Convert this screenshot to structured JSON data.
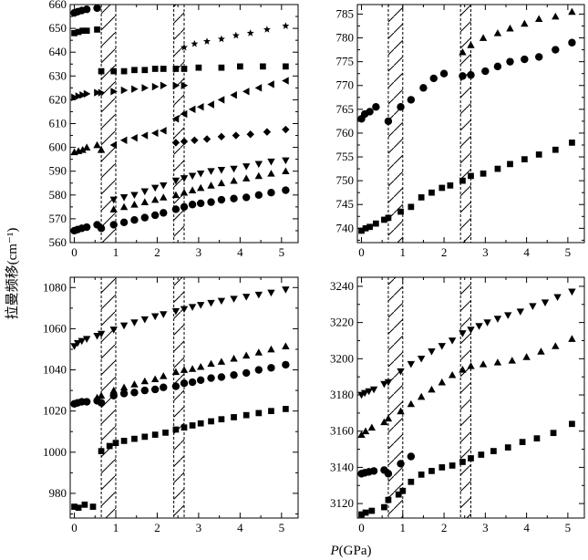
{
  "figure": {
    "ylabel": "拉曼频移(cm⁻¹)",
    "xlabel_italic": "P",
    "xlabel_rest": "(GPa)"
  },
  "chart_data": [
    {
      "type": "scatter",
      "panel": "top-left",
      "xlim": [
        -0.1,
        5.4
      ],
      "ylim": [
        560,
        660
      ],
      "x_ticks": [
        0,
        1,
        2,
        3,
        4,
        5
      ],
      "y_ticks": [
        560,
        570,
        580,
        590,
        600,
        610,
        620,
        630,
        640,
        650,
        660
      ],
      "transition_lines": [
        0.65,
        1.0,
        2.4,
        2.65
      ],
      "hatched_regions": [
        [
          0.65,
          1.0
        ],
        [
          2.4,
          2.65
        ]
      ],
      "series": [
        {
          "marker": "circle",
          "x": [
            0.0,
            0.08,
            0.18,
            0.3,
            0.55,
            0.65,
            0.95,
            1.2,
            1.45,
            1.7,
            1.95,
            2.15,
            2.45,
            2.65,
            2.85,
            3.05,
            3.3,
            3.55,
            3.85,
            4.15,
            4.45,
            4.75,
            5.1
          ],
          "y": [
            565,
            565.5,
            566,
            566.5,
            567.5,
            566,
            567.5,
            568.5,
            569.5,
            570.5,
            571.5,
            572.5,
            574,
            575,
            576,
            576.5,
            577,
            578,
            578.5,
            579,
            580,
            581,
            582
          ]
        },
        {
          "marker": "triangle-up",
          "x": [
            0.95,
            1.2,
            1.45,
            1.7,
            1.95,
            2.15,
            2.45,
            2.65,
            2.85,
            3.05,
            3.3,
            3.55,
            3.85,
            4.15,
            4.45,
            4.75,
            5.1
          ],
          "y": [
            574,
            575,
            576,
            577,
            578,
            579,
            580,
            581,
            582,
            583,
            584,
            585,
            586,
            587,
            588,
            589,
            590
          ]
        },
        {
          "marker": "triangle-down",
          "x": [
            0.95,
            1.2,
            1.45,
            1.7,
            1.95,
            2.15,
            2.45,
            2.65,
            2.85,
            3.05,
            3.3,
            3.55,
            3.85,
            4.15,
            4.45,
            4.75,
            5.1
          ],
          "y": [
            578,
            579,
            580,
            581.5,
            583,
            584,
            586,
            587,
            588,
            589,
            590,
            590.5,
            591,
            592,
            593,
            594,
            594.5
          ]
        },
        {
          "marker": "triangle-up",
          "x": [
            0.0,
            0.1,
            0.2,
            0.3,
            0.55,
            0.65
          ],
          "y": [
            598,
            598.5,
            599,
            600,
            601,
            599
          ]
        },
        {
          "marker": "diamond",
          "x": [
            2.45,
            2.65,
            2.9,
            3.2,
            3.55,
            3.9,
            4.25,
            4.65,
            5.1
          ],
          "y": [
            602,
            602.5,
            603,
            603.5,
            604.5,
            605,
            605.5,
            606.5,
            607.5
          ]
        },
        {
          "marker": "triangle-left",
          "x": [
            0.95,
            1.2,
            1.45,
            1.7,
            1.95,
            2.15,
            2.45,
            2.65,
            2.85,
            3.05,
            3.3,
            3.55,
            3.85,
            4.15,
            4.45,
            4.75,
            5.1
          ],
          "y": [
            601,
            603,
            604,
            605,
            606,
            607,
            612,
            614,
            616,
            617,
            618,
            620,
            622,
            623.5,
            625,
            626.5,
            628
          ]
        },
        {
          "marker": "triangle-right",
          "x": [
            0.0,
            0.1,
            0.2,
            0.3,
            0.55,
            0.65,
            0.95,
            1.2,
            1.45,
            1.7,
            1.95,
            2.15,
            2.45,
            2.65
          ],
          "y": [
            621,
            621.5,
            622,
            622.5,
            623,
            623,
            623.5,
            624,
            624.5,
            625,
            625.5,
            626,
            626,
            626
          ]
        },
        {
          "marker": "square",
          "x": [
            0.65,
            0.95,
            1.2,
            1.45,
            1.7,
            1.95,
            2.15,
            2.45,
            2.65,
            3.0,
            3.55,
            4.0,
            4.55,
            5.1
          ],
          "y": [
            632,
            632,
            632,
            632.5,
            632.5,
            633,
            633,
            633,
            633,
            633.5,
            633.5,
            634,
            634,
            634
          ]
        },
        {
          "marker": "square",
          "x": [
            0.0,
            0.1,
            0.2,
            0.3,
            0.55
          ],
          "y": [
            648,
            648.5,
            649,
            649,
            649.5
          ]
        },
        {
          "marker": "circle",
          "x": [
            0.0,
            0.08,
            0.18,
            0.3,
            0.55
          ],
          "y": [
            656.5,
            657,
            657.5,
            658,
            658.5
          ]
        },
        {
          "marker": "star",
          "x": [
            2.65,
            2.9,
            3.2,
            3.55,
            3.9,
            4.25,
            4.65,
            5.1
          ],
          "y": [
            642,
            643.5,
            644.5,
            645.5,
            647,
            648,
            649.5,
            651
          ]
        }
      ]
    },
    {
      "type": "scatter",
      "panel": "top-right",
      "xlim": [
        -0.1,
        5.4
      ],
      "ylim": [
        737,
        787
      ],
      "x_ticks": [
        0,
        1,
        2,
        3,
        4,
        5
      ],
      "y_ticks": [
        740,
        745,
        750,
        755,
        760,
        765,
        770,
        775,
        780,
        785
      ],
      "transition_lines": [
        0.65,
        1.0,
        2.4,
        2.65
      ],
      "hatched_regions": [
        [
          0.65,
          1.0
        ],
        [
          2.4,
          2.65
        ]
      ],
      "series": [
        {
          "marker": "square",
          "x": [
            0.0,
            0.1,
            0.2,
            0.35,
            0.55,
            0.65,
            0.95,
            1.2,
            1.45,
            1.7,
            1.95,
            2.15,
            2.45,
            2.65,
            2.95,
            3.3,
            3.6,
            3.95,
            4.3,
            4.7,
            5.1
          ],
          "y": [
            739.5,
            740,
            740.3,
            741,
            741.8,
            742.2,
            743.5,
            744.5,
            746.5,
            747.5,
            748.5,
            749,
            750,
            751,
            751.5,
            752.5,
            753.5,
            754.5,
            755.5,
            756.5,
            758
          ]
        },
        {
          "marker": "circle",
          "x": [
            0.0,
            0.08,
            0.2,
            0.35,
            0.65,
            0.95,
            1.2,
            1.5,
            1.75,
            2.0,
            2.45,
            2.65,
            3.0,
            3.3,
            3.6,
            3.95,
            4.3,
            4.7,
            5.1
          ],
          "y": [
            763,
            764,
            764.5,
            765.5,
            762.5,
            765.5,
            767,
            769.5,
            771.5,
            772.5,
            772,
            772.2,
            773,
            774,
            775,
            775.5,
            776,
            777.5,
            779
          ]
        },
        {
          "marker": "triangle-up",
          "x": [
            2.45,
            2.65,
            2.95,
            3.3,
            3.6,
            3.95,
            4.3,
            4.7,
            5.1
          ],
          "y": [
            777,
            778.5,
            780,
            781,
            782,
            783,
            784,
            784.5,
            785.5
          ]
        }
      ]
    },
    {
      "type": "scatter",
      "panel": "bottom-left",
      "xlim": [
        -0.1,
        5.4
      ],
      "ylim": [
        968,
        1085
      ],
      "x_ticks": [
        0,
        1,
        2,
        3,
        4,
        5
      ],
      "y_ticks": [
        980,
        1000,
        1020,
        1040,
        1060,
        1080
      ],
      "transition_lines": [
        0.65,
        1.0,
        2.4,
        2.65
      ],
      "hatched_regions": [
        [
          0.65,
          1.0
        ],
        [
          2.4,
          2.65
        ]
      ],
      "series": [
        {
          "marker": "square",
          "x": [
            0.0,
            0.1,
            0.25,
            0.45,
            0.65,
            0.85,
            1.0,
            1.2,
            1.45,
            1.7,
            1.95,
            2.2,
            2.45,
            2.65,
            2.85,
            3.05,
            3.3,
            3.55,
            3.85,
            4.15,
            4.45,
            4.75,
            5.1
          ],
          "y": [
            973.5,
            973,
            974.5,
            973.5,
            1000.5,
            1003,
            1004.5,
            1005.5,
            1006.5,
            1007.5,
            1008.5,
            1009.5,
            1011,
            1012,
            1013,
            1014,
            1015,
            1016,
            1017,
            1018,
            1019,
            1020,
            1021
          ]
        },
        {
          "marker": "circle",
          "x": [
            0.0,
            0.08,
            0.18,
            0.3,
            0.55,
            0.65,
            0.95,
            1.2,
            1.45,
            1.7,
            1.95,
            2.15,
            2.45,
            2.65,
            2.85,
            3.05,
            3.3,
            3.55,
            3.85,
            4.15,
            4.45,
            4.75,
            5.1
          ],
          "y": [
            1023.5,
            1024,
            1024.5,
            1024.5,
            1025,
            1024,
            1027.5,
            1028.5,
            1029,
            1030,
            1030.5,
            1031.5,
            1032,
            1033.5,
            1034,
            1035,
            1036,
            1036.5,
            1037.5,
            1038.5,
            1040,
            1041,
            1042.5
          ]
        },
        {
          "marker": "triangle-up",
          "x": [
            0.55,
            0.65,
            0.95,
            1.2,
            1.45,
            1.7,
            1.95,
            2.15,
            2.45,
            2.65,
            2.85,
            3.05,
            3.3,
            3.55,
            3.85,
            4.15,
            4.45,
            4.75,
            5.1
          ],
          "y": [
            1026.5,
            1027.5,
            1030,
            1031.5,
            1033,
            1034.5,
            1035.5,
            1037,
            1039,
            1040,
            1040.5,
            1041.5,
            1043,
            1044,
            1045.5,
            1047,
            1048.5,
            1050,
            1051.5
          ]
        },
        {
          "marker": "triangle-down",
          "x": [
            0.0,
            0.08,
            0.18,
            0.3,
            0.55,
            0.65,
            0.95,
            1.2,
            1.45,
            1.7,
            1.95,
            2.15,
            2.45,
            2.65,
            2.85,
            3.05,
            3.3,
            3.55,
            3.85,
            4.15,
            4.45,
            4.75,
            5.1
          ],
          "y": [
            1051.5,
            1053,
            1054,
            1055,
            1056.5,
            1057.5,
            1059.5,
            1061.5,
            1063,
            1064.5,
            1066,
            1067,
            1068.5,
            1069.5,
            1070.5,
            1071.5,
            1072.5,
            1073.5,
            1074.5,
            1075.5,
            1076.5,
            1077.5,
            1079
          ]
        }
      ]
    },
    {
      "type": "scatter",
      "panel": "bottom-right",
      "xlim": [
        -0.1,
        5.4
      ],
      "ylim": [
        3112,
        3245
      ],
      "x_ticks": [
        0,
        1,
        2,
        3,
        4,
        5
      ],
      "y_ticks": [
        3120,
        3140,
        3160,
        3180,
        3200,
        3220,
        3240
      ],
      "transition_lines": [
        0.65,
        1.0,
        2.4,
        2.65
      ],
      "hatched_regions": [
        [
          0.65,
          1.0
        ],
        [
          2.4,
          2.65
        ]
      ],
      "series": [
        {
          "marker": "square",
          "x": [
            0.0,
            0.1,
            0.25,
            0.55,
            0.65,
            0.9,
            1.0,
            1.2,
            1.45,
            1.7,
            1.95,
            2.2,
            2.45,
            2.65,
            2.9,
            3.2,
            3.55,
            3.9,
            4.25,
            4.65,
            5.1
          ],
          "y": [
            3114,
            3115,
            3116,
            3118,
            3122,
            3125,
            3127,
            3132,
            3136,
            3138,
            3140,
            3141,
            3143,
            3145,
            3147,
            3149,
            3151,
            3154,
            3156,
            3159,
            3164
          ]
        },
        {
          "marker": "circle",
          "x": [
            0.0,
            0.08,
            0.18,
            0.3,
            0.55,
            0.65,
            0.95,
            1.2
          ],
          "y": [
            3136.5,
            3137,
            3137.5,
            3138,
            3138.5,
            3136.5,
            3142,
            3146
          ]
        },
        {
          "marker": "triangle-up",
          "x": [
            0.0,
            0.1,
            0.25,
            0.55,
            0.65,
            0.95,
            1.2,
            1.45,
            1.7,
            1.95,
            2.2,
            2.45,
            2.65,
            2.95,
            3.3,
            3.65,
            4.0,
            4.35,
            4.7,
            5.1
          ],
          "y": [
            3158,
            3160,
            3162,
            3165,
            3167,
            3171,
            3175,
            3179,
            3183,
            3187,
            3191,
            3194,
            3196,
            3197,
            3198,
            3199,
            3201,
            3204,
            3207,
            3211
          ]
        },
        {
          "marker": "triangle-down",
          "x": [
            0.0,
            0.08,
            0.18,
            0.3,
            0.55,
            0.65,
            0.95,
            1.2,
            1.45,
            1.7,
            1.95,
            2.2,
            2.45,
            2.65,
            2.85,
            3.05,
            3.3,
            3.55,
            3.85,
            4.15,
            4.45,
            4.75,
            5.1
          ],
          "y": [
            3180,
            3181,
            3182,
            3183,
            3186,
            3187,
            3193,
            3197,
            3200,
            3204,
            3207,
            3210,
            3214,
            3216,
            3218,
            3220,
            3222,
            3224,
            3226,
            3229,
            3231,
            3234,
            3237
          ]
        }
      ]
    }
  ]
}
